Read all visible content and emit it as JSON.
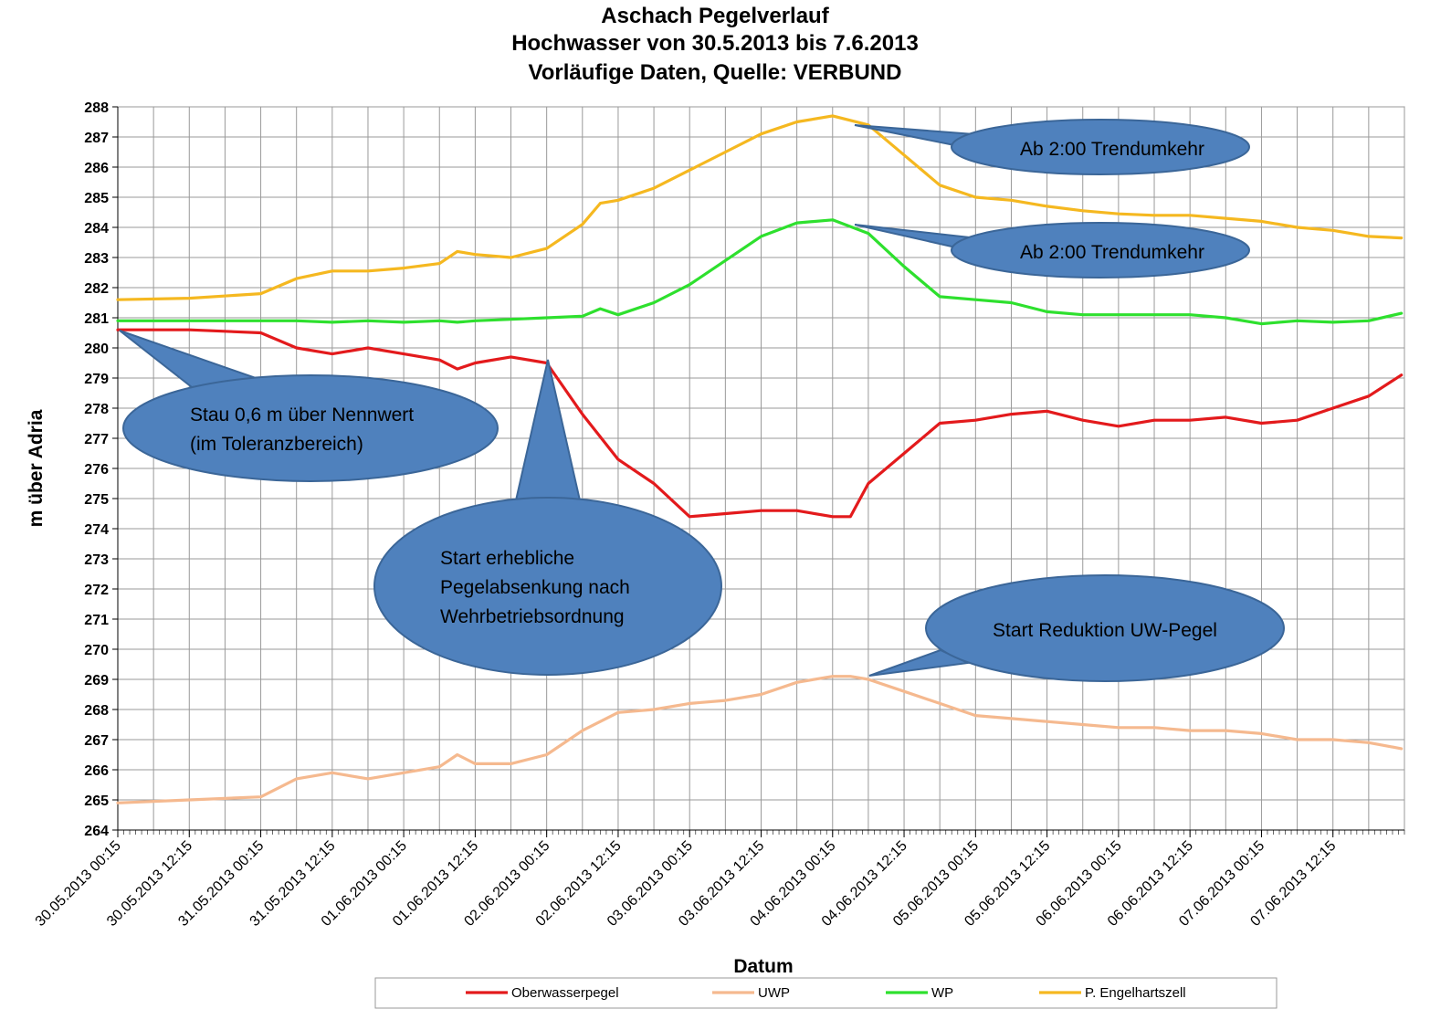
{
  "chart_data": {
    "type": "line",
    "title": [
      "Aschach Pegelverlauf",
      "Hochwasser von 30.5.2013 bis 7.6.2013",
      "Vorläufige Daten, Quelle: VERBUND"
    ],
    "xlabel": "Datum",
    "ylabel": "m über Adria",
    "ylim": [
      264,
      288
    ],
    "yticks": [
      264,
      265,
      266,
      267,
      268,
      269,
      270,
      271,
      272,
      273,
      274,
      275,
      276,
      277,
      278,
      279,
      280,
      281,
      282,
      283,
      284,
      285,
      286,
      287,
      288
    ],
    "xlim_hours": [
      0,
      216
    ],
    "x_start": "30.05.2013 00:15",
    "x_end": "07.06.2013 23:45",
    "xtick_labels": [
      "30.05.2013 00:15",
      "30.05.2013 12:15",
      "31.05.2013 00:15",
      "31.05.2013 12:15",
      "01.06.2013 00:15",
      "01.06.2013 12:15",
      "02.06.2013 00:15",
      "02.06.2013 12:15",
      "03.06.2013 00:15",
      "03.06.2013 12:15",
      "04.06.2013 00:15",
      "04.06.2013 12:15",
      "05.06.2013 00:15",
      "05.06.2013 12:15",
      "06.06.2013 00:15",
      "06.06.2013 12:15",
      "07.06.2013 00:15",
      "07.06.2013 12:15"
    ],
    "grid": true,
    "legend_position": "bottom",
    "series": [
      {
        "name": "Oberwasserpegel",
        "color": "#e31a1c",
        "x": [
          "30.05.2013 00:15",
          "30.05.2013 12:15",
          "31.05.2013 00:15",
          "31.05.2013 06:15",
          "31.05.2013 12:15",
          "31.05.2013 18:15",
          "01.06.2013 00:15",
          "01.06.2013 06:15",
          "01.06.2013 09:15",
          "01.06.2013 12:15",
          "01.06.2013 18:15",
          "02.06.2013 00:15",
          "02.06.2013 06:15",
          "02.06.2013 12:15",
          "02.06.2013 18:15",
          "03.06.2013 00:15",
          "03.06.2013 06:15",
          "03.06.2013 12:15",
          "03.06.2013 18:15",
          "04.06.2013 00:15",
          "04.06.2013 03:15",
          "04.06.2013 06:15",
          "04.06.2013 12:15",
          "04.06.2013 18:15",
          "05.06.2013 00:15",
          "05.06.2013 06:15",
          "05.06.2013 12:15",
          "05.06.2013 18:15",
          "06.06.2013 00:15",
          "06.06.2013 06:15",
          "06.06.2013 12:15",
          "06.06.2013 18:15",
          "07.06.2013 00:15",
          "07.06.2013 06:15",
          "07.06.2013 12:15",
          "07.06.2013 18:15",
          "07.06.2013 23:45"
        ],
        "values": [
          280.6,
          280.6,
          280.5,
          280.0,
          279.8,
          280.0,
          279.8,
          279.6,
          279.3,
          279.5,
          279.7,
          279.5,
          277.8,
          276.3,
          275.5,
          274.4,
          274.5,
          274.6,
          274.6,
          274.4,
          274.4,
          275.5,
          276.5,
          277.5,
          277.6,
          277.8,
          277.9,
          277.6,
          277.4,
          277.6,
          277.6,
          277.7,
          277.5,
          277.6,
          278.0,
          278.4,
          279.1
        ]
      },
      {
        "name": "UWP",
        "color": "#f5b98f",
        "x": [
          "30.05.2013 00:15",
          "30.05.2013 12:15",
          "31.05.2013 00:15",
          "31.05.2013 06:15",
          "31.05.2013 12:15",
          "31.05.2013 18:15",
          "01.06.2013 00:15",
          "01.06.2013 06:15",
          "01.06.2013 09:15",
          "01.06.2013 12:15",
          "01.06.2013 18:15",
          "02.06.2013 00:15",
          "02.06.2013 06:15",
          "02.06.2013 12:15",
          "02.06.2013 18:15",
          "03.06.2013 00:15",
          "03.06.2013 06:15",
          "03.06.2013 12:15",
          "03.06.2013 18:15",
          "04.06.2013 00:15",
          "04.06.2013 03:15",
          "04.06.2013 06:15",
          "04.06.2013 12:15",
          "04.06.2013 18:15",
          "05.06.2013 00:15",
          "05.06.2013 06:15",
          "05.06.2013 12:15",
          "05.06.2013 18:15",
          "06.06.2013 00:15",
          "06.06.2013 06:15",
          "06.06.2013 12:15",
          "06.06.2013 18:15",
          "07.06.2013 00:15",
          "07.06.2013 06:15",
          "07.06.2013 12:15",
          "07.06.2013 18:15",
          "07.06.2013 23:45"
        ],
        "values": [
          264.9,
          265.0,
          265.1,
          265.7,
          265.9,
          265.7,
          265.9,
          266.1,
          266.5,
          266.2,
          266.2,
          266.5,
          267.3,
          267.9,
          268.0,
          268.2,
          268.3,
          268.5,
          268.9,
          269.1,
          269.1,
          269.0,
          268.6,
          268.2,
          267.8,
          267.7,
          267.6,
          267.5,
          267.4,
          267.4,
          267.3,
          267.3,
          267.2,
          267.0,
          267.0,
          266.9,
          266.7
        ]
      },
      {
        "name": "WP",
        "color": "#2ee02e",
        "x": [
          "30.05.2013 00:15",
          "30.05.2013 12:15",
          "31.05.2013 00:15",
          "31.05.2013 06:15",
          "31.05.2013 12:15",
          "31.05.2013 18:15",
          "01.06.2013 00:15",
          "01.06.2013 06:15",
          "01.06.2013 09:15",
          "01.06.2013 12:15",
          "01.06.2013 18:15",
          "02.06.2013 00:15",
          "02.06.2013 06:15",
          "02.06.2013 09:15",
          "02.06.2013 12:15",
          "02.06.2013 18:15",
          "03.06.2013 00:15",
          "03.06.2013 06:15",
          "03.06.2013 12:15",
          "03.06.2013 18:15",
          "04.06.2013 00:15",
          "04.06.2013 06:15",
          "04.06.2013 12:15",
          "04.06.2013 18:15",
          "05.06.2013 00:15",
          "05.06.2013 06:15",
          "05.06.2013 12:15",
          "05.06.2013 18:15",
          "06.06.2013 00:15",
          "06.06.2013 06:15",
          "06.06.2013 12:15",
          "06.06.2013 18:15",
          "07.06.2013 00:15",
          "07.06.2013 06:15",
          "07.06.2013 12:15",
          "07.06.2013 18:15",
          "07.06.2013 23:45"
        ],
        "values": [
          280.9,
          280.9,
          280.9,
          280.9,
          280.85,
          280.9,
          280.85,
          280.9,
          280.85,
          280.9,
          280.95,
          281.0,
          281.05,
          281.3,
          281.1,
          281.5,
          282.1,
          282.9,
          283.7,
          284.15,
          284.25,
          283.8,
          282.7,
          281.7,
          281.6,
          281.5,
          281.2,
          281.1,
          281.1,
          281.1,
          281.1,
          281.0,
          280.8,
          280.9,
          280.85,
          280.9,
          281.15
        ]
      },
      {
        "name": "P. Engelhartszell",
        "color": "#f5b820",
        "x": [
          "30.05.2013 00:15",
          "30.05.2013 12:15",
          "31.05.2013 00:15",
          "31.05.2013 06:15",
          "31.05.2013 12:15",
          "31.05.2013 18:15",
          "01.06.2013 00:15",
          "01.06.2013 06:15",
          "01.06.2013 09:15",
          "01.06.2013 12:15",
          "01.06.2013 18:15",
          "02.06.2013 00:15",
          "02.06.2013 06:15",
          "02.06.2013 09:15",
          "02.06.2013 12:15",
          "02.06.2013 18:15",
          "03.06.2013 00:15",
          "03.06.2013 06:15",
          "03.06.2013 12:15",
          "03.06.2013 18:15",
          "04.06.2013 00:15",
          "04.06.2013 06:15",
          "04.06.2013 12:15",
          "04.06.2013 18:15",
          "05.06.2013 00:15",
          "05.06.2013 06:15",
          "05.06.2013 12:15",
          "05.06.2013 18:15",
          "06.06.2013 00:15",
          "06.06.2013 06:15",
          "06.06.2013 12:15",
          "06.06.2013 18:15",
          "07.06.2013 00:15",
          "07.06.2013 06:15",
          "07.06.2013 12:15",
          "07.06.2013 18:15",
          "07.06.2013 23:45"
        ],
        "values": [
          281.6,
          281.65,
          281.8,
          282.3,
          282.55,
          282.55,
          282.65,
          282.8,
          283.2,
          283.1,
          283.0,
          283.3,
          284.1,
          284.8,
          284.9,
          285.3,
          285.9,
          286.5,
          287.1,
          287.5,
          287.7,
          287.4,
          286.4,
          285.4,
          285.0,
          284.9,
          284.7,
          284.55,
          284.45,
          284.4,
          284.4,
          284.3,
          284.2,
          284.0,
          283.9,
          283.7,
          283.65
        ]
      }
    ],
    "annotations": [
      "Ab 2:00 Trendumkehr",
      "Ab 2:00 Trendumkehr",
      "Stau 0,6 m über Nennwert (im Toleranzbereich)",
      "Start erhebliche Pegelabsenkung nach Wehrbetriebsordnung",
      "Start Reduktion UW-Pegel"
    ]
  },
  "callouts": [
    {
      "lines": [
        "Ab 2:00 Trendumkehr"
      ],
      "fill": "#4f81bd"
    },
    {
      "lines": [
        "Ab 2:00 Trendumkehr"
      ],
      "fill": "#4f81bd"
    },
    {
      "lines": [
        "Stau 0,6 m über Nennwert",
        "(im Toleranzbereich)"
      ],
      "fill": "#4f81bd"
    },
    {
      "lines": [
        "Start erhebliche",
        "Pegelabsenkung nach",
        "Wehrbetriebsordnung"
      ],
      "fill": "#4f81bd"
    },
    {
      "lines": [
        "Start Reduktion UW-Pegel"
      ],
      "fill": "#4f81bd"
    }
  ]
}
